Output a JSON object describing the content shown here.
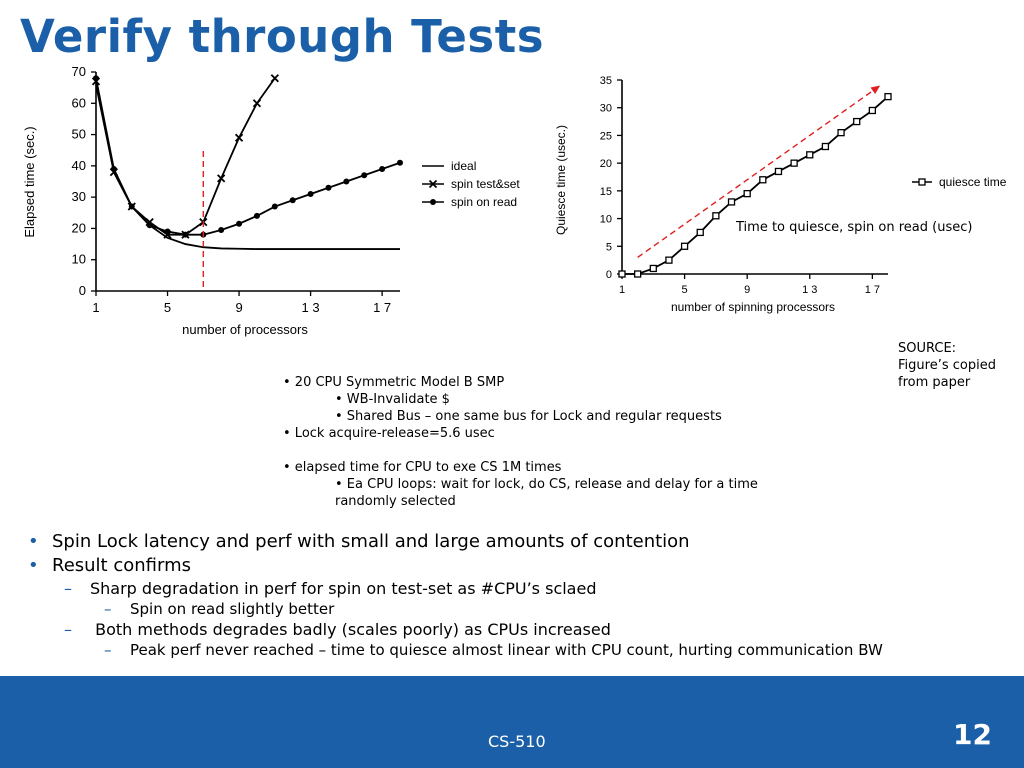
{
  "slide": {
    "title": "Verify through Tests",
    "source_label": "SOURCE:",
    "source_text_1": "Figure’s copied",
    "source_text_2": "from paper",
    "annotation": "Time to quiesce, spin on read (usec)",
    "specs": [
      "• 20 CPU Symmetric Model B SMP",
      "• WB-Invalidate $",
      "• Shared Bus – one same bus for Lock and regular requests",
      "• Lock acquire-release=5.6 usec",
      "• elapsed time for CPU to exe CS 1M times",
      "• Ea CPU loops: wait for lock, do CS, release and delay for a time randomly selected"
    ],
    "bullets": {
      "b1": "Spin Lock latency and perf with small and large amounts of contention",
      "b2": "Result confirms",
      "b2_1": "Sharp degradation in perf for spin on test-set as #CPU’s sclaed",
      "b2_1_1": "Spin on read slightly better",
      "b2_2": " Both methods degrades badly (scales poorly) as CPUs increased",
      "b2_2_1": "Peak perf never reached – time to quiesce almost linear with CPU count, hurting communication BW"
    },
    "bullet_marks": {
      "dot": "•",
      "dash": "–"
    },
    "footer": {
      "course": "CS-510",
      "page": "12"
    },
    "colors": {
      "accent": "#1a5fa8",
      "dashed_marker": "#e02020"
    }
  },
  "chart_data": [
    {
      "type": "line",
      "xlabel": "number of processors",
      "ylabel": "Elapsed time (sec.)",
      "xlim": [
        1,
        18
      ],
      "ylim": [
        0,
        70
      ],
      "xticks": [
        1,
        5,
        9,
        13,
        17
      ],
      "xtick_labels": [
        "1",
        "5",
        "9",
        "1 3",
        "1 7"
      ],
      "yticks": [
        0,
        10,
        20,
        30,
        40,
        50,
        60,
        70
      ],
      "legend_position": "right",
      "vertical_marker_x": 7,
      "series": [
        {
          "name": "ideal",
          "marker": "none",
          "x": [
            1,
            2,
            3,
            4,
            5,
            6,
            7,
            8,
            9,
            10,
            11,
            12,
            13,
            14,
            15,
            16,
            17,
            18
          ],
          "values": [
            66,
            38,
            27,
            21,
            17,
            15,
            14,
            13.6,
            13.5,
            13.4,
            13.4,
            13.4,
            13.4,
            13.4,
            13.4,
            13.4,
            13.4,
            13.4
          ]
        },
        {
          "name": "spin test&set",
          "marker": "x",
          "x": [
            1,
            2,
            3,
            4,
            5,
            6,
            7,
            8,
            9,
            10,
            11
          ],
          "values": [
            67,
            38,
            27,
            22,
            18,
            18,
            22,
            36,
            49,
            60,
            68
          ]
        },
        {
          "name": "spin on read",
          "marker": "dot",
          "x": [
            1,
            2,
            3,
            4,
            5,
            6,
            7,
            8,
            9,
            10,
            11,
            12,
            13,
            14,
            15,
            16,
            17,
            18
          ],
          "values": [
            68,
            39,
            27,
            21,
            19,
            18,
            18,
            19.5,
            21.5,
            24,
            27,
            29,
            31,
            33,
            35,
            37,
            39,
            41
          ]
        }
      ]
    },
    {
      "type": "line",
      "xlabel": "number of spinning processors",
      "ylabel": "Quiesce time (usec.)",
      "xlim": [
        1,
        18
      ],
      "ylim": [
        0,
        35
      ],
      "xticks": [
        1,
        5,
        9,
        13,
        17
      ],
      "xtick_labels": [
        "1",
        "5",
        "9",
        "1 3",
        "1 7"
      ],
      "yticks": [
        0,
        5,
        10,
        15,
        20,
        25,
        30,
        35
      ],
      "legend_position": "right",
      "series": [
        {
          "name": "quiesce time",
          "marker": "square",
          "x": [
            1,
            2,
            3,
            4,
            5,
            6,
            7,
            8,
            9,
            10,
            11,
            12,
            13,
            14,
            15,
            16,
            17,
            18
          ],
          "values": [
            0,
            0,
            1,
            2.5,
            5,
            7.5,
            10.5,
            13,
            14.5,
            17,
            18.5,
            20,
            21.5,
            23,
            25.5,
            27.5,
            29.5,
            32
          ]
        }
      ],
      "trend_arrow": {
        "x": [
          2,
          17.5
        ],
        "values": [
          3,
          34
        ]
      }
    }
  ]
}
